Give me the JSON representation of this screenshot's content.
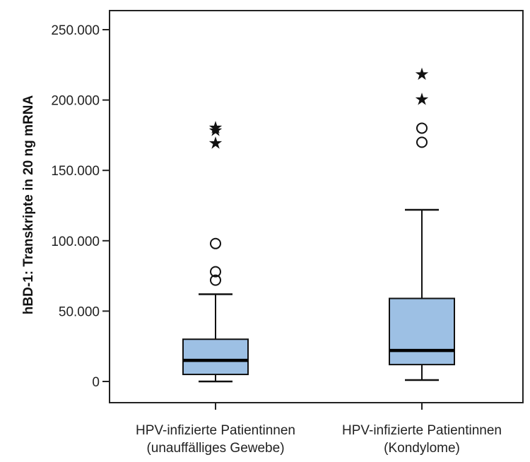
{
  "chart_data": {
    "type": "boxplot",
    "ylabel": "hBD-1: Transkripte in 20 ng mRNA",
    "ylim": [
      -15000,
      265000
    ],
    "yticks": [
      0,
      50000,
      100000,
      150000,
      200000,
      250000
    ],
    "ytick_labels": [
      "0",
      "50.000",
      "100.000",
      "150.000",
      "200.000",
      "250.000"
    ],
    "grid": false,
    "box_color": "#9dc0e4",
    "categories": [
      [
        "HPV-infizierte Patientinnen",
        "(unauffälliges Gewebe)"
      ],
      [
        "HPV-infizierte Patientinnen",
        "(Kondylome)"
      ]
    ],
    "series": [
      {
        "min": 0,
        "q1": 5000,
        "median": 15000,
        "q3": 30000,
        "max": 62000,
        "outliers": [
          72000,
          78000,
          98000
        ],
        "extremes": [
          170000,
          179000,
          181000
        ]
      },
      {
        "min": 1000,
        "q1": 12000,
        "median": 22000,
        "q3": 59000,
        "max": 122000,
        "outliers": [
          170000,
          180000
        ],
        "extremes": [
          201000,
          219000
        ]
      }
    ]
  }
}
